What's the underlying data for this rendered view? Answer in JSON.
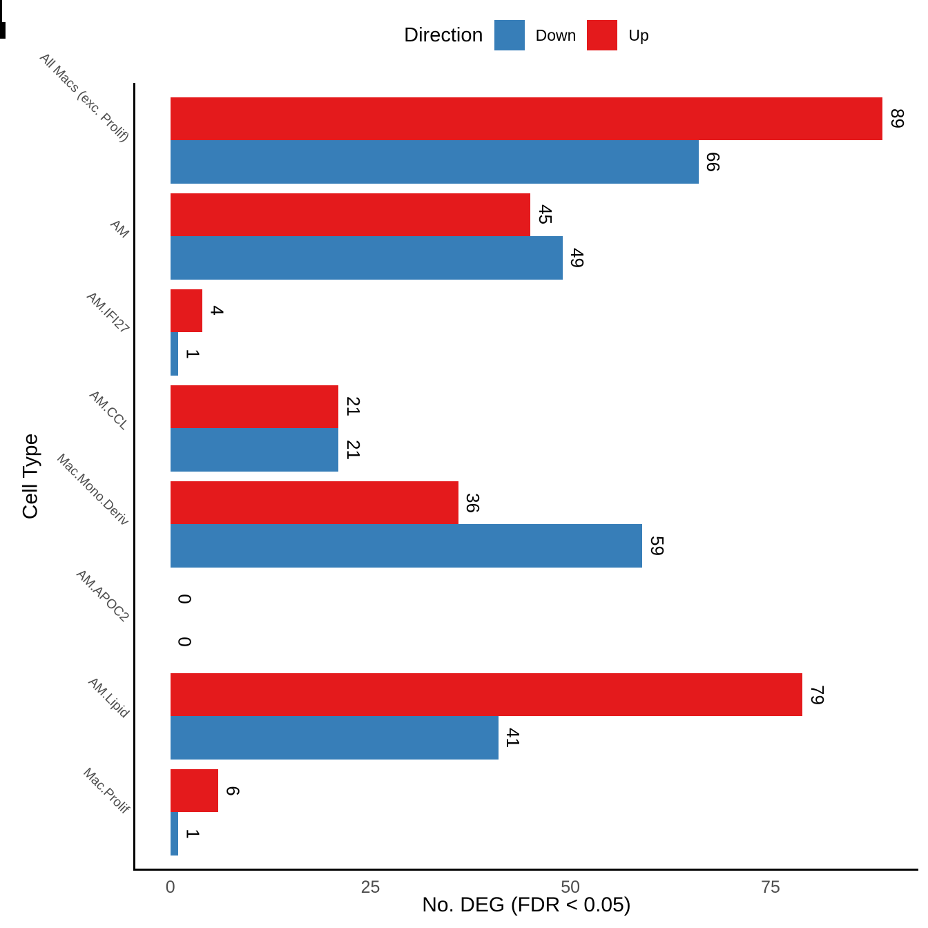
{
  "chart_data": {
    "type": "bar",
    "orientation": "horizontal",
    "legend": {
      "title": "Direction",
      "position": "top",
      "entries": [
        {
          "label": "Down",
          "color": "#377EB8"
        },
        {
          "label": "Up",
          "color": "#E41A1C"
        }
      ]
    },
    "categories": [
      "All Macs (exc. Prolif)",
      "AM",
      "AM.IFI27",
      "AM.CCL",
      "Mac.Mono.Deriv",
      "AM.APOC2",
      "AM.Lipid",
      "Mac.Prolif"
    ],
    "series": [
      {
        "name": "Up",
        "color": "#E41A1C",
        "values": [
          89,
          45,
          4,
          21,
          36,
          0,
          79,
          6
        ]
      },
      {
        "name": "Down",
        "color": "#377EB8",
        "values": [
          66,
          49,
          1,
          21,
          59,
          0,
          41,
          1
        ]
      }
    ],
    "bar_value_labels": true,
    "xlabel": "No. DEG (FDR < 0.05)",
    "ylabel": "Cell Type",
    "x_ticks": [
      0,
      25,
      50,
      75
    ],
    "xlim": [
      -4.6,
      93.4
    ],
    "grid": false,
    "colors": {
      "axis_line": "#000000",
      "axis_text": "#4D4D4D",
      "value_label": "#000000",
      "background": "#FFFFFF"
    }
  }
}
